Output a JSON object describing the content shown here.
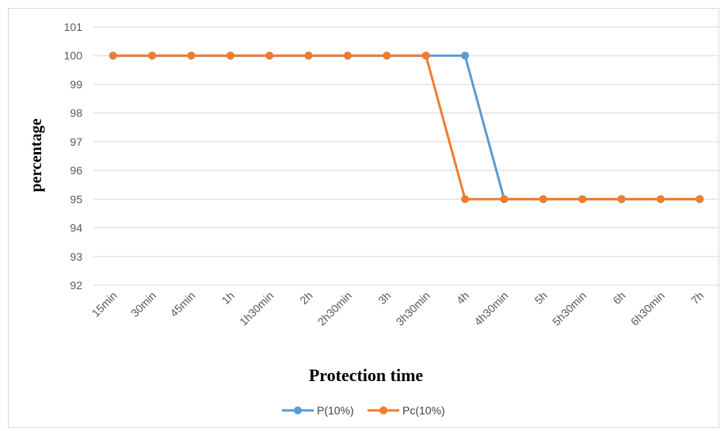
{
  "chart_data": {
    "type": "line",
    "title": "",
    "xlabel": "Protection time",
    "ylabel": "percentage",
    "categories": [
      "15min",
      "30min",
      "45min",
      "1h",
      "1h30min",
      "2h",
      "2h30min",
      "3h",
      "3h30min",
      "4h",
      "4h30min",
      "5h",
      "5h30min",
      "6h",
      "6h30min",
      "7h"
    ],
    "series": [
      {
        "name": "P(10%)",
        "color": "#5B9BD5",
        "values": [
          100,
          100,
          100,
          100,
          100,
          100,
          100,
          100,
          100,
          100,
          95,
          95,
          95,
          95,
          95,
          95
        ]
      },
      {
        "name": "Pc(10%)",
        "color": "#ED7D31",
        "values": [
          100,
          100,
          100,
          100,
          100,
          100,
          100,
          100,
          100,
          95,
          95,
          95,
          95,
          95,
          95,
          95
        ]
      }
    ],
    "ylim": [
      92,
      101
    ],
    "yticks": [
      92,
      93,
      94,
      95,
      96,
      97,
      98,
      99,
      100,
      101
    ],
    "grid": true,
    "legend_position": "bottom"
  }
}
